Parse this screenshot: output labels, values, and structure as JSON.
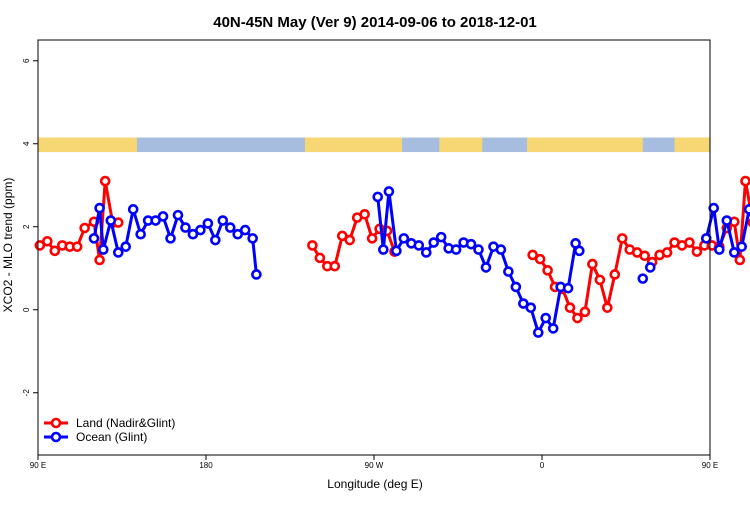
{
  "chart_data": {
    "type": "line",
    "title": "40N-45N May (Ver 9)   2014-09-06 to 2018-12-01",
    "xlabel": "Longitude (deg E)",
    "ylabel": "XCO2 - MLO trend (ppm)",
    "xlim": [
      90,
      450
    ],
    "ylim": [
      -3.5,
      6.5
    ],
    "x_ticks": [
      {
        "value": 90,
        "label": "90 E"
      },
      {
        "value": 180,
        "label": "180"
      },
      {
        "value": 270,
        "label": "90 W"
      },
      {
        "value": 360,
        "label": "0"
      },
      {
        "value": 450,
        "label": "90 E"
      },
      {
        "value": 540,
        "label": "180"
      }
    ],
    "y_ticks": [
      {
        "value": -2,
        "label": "-2"
      },
      {
        "value": 0,
        "label": "0"
      },
      {
        "value": 2,
        "label": "2"
      },
      {
        "value": 4,
        "label": "4"
      },
      {
        "value": 6,
        "label": "6"
      }
    ],
    "grid": false,
    "legend_position": "bottom-left",
    "land_mask": {
      "y_range": [
        3.8,
        4.15
      ],
      "land_color": "#f7d774",
      "ocean_color": "#a6bde0",
      "land_spans": [
        [
          90,
          143
        ],
        [
          233,
          285
        ],
        [
          305,
          328
        ],
        [
          352,
          414
        ],
        [
          431,
          476
        ],
        [
          523,
          540
        ]
      ]
    },
    "series": [
      {
        "name": "Land (Nadir&Glint)",
        "color": "#ff0000",
        "segments": [
          [
            [
              91,
              1.55
            ],
            [
              95,
              1.65
            ],
            [
              99,
              1.42
            ],
            [
              103,
              1.55
            ],
            [
              107,
              1.52
            ],
            [
              111,
              1.52
            ],
            [
              115,
              1.97
            ],
            [
              120,
              2.12
            ],
            [
              123,
              1.2
            ],
            [
              126,
              3.1
            ],
            [
              130,
              2.1
            ],
            [
              133,
              2.1
            ]
          ],
          [
            [
              237,
              1.55
            ],
            [
              241,
              1.25
            ],
            [
              245,
              1.05
            ],
            [
              249,
              1.05
            ],
            [
              253,
              1.78
            ],
            [
              257,
              1.68
            ],
            [
              261,
              2.22
            ],
            [
              265,
              2.3
            ],
            [
              269,
              1.72
            ],
            [
              273,
              1.95
            ],
            [
              277,
              1.9
            ],
            [
              281,
              1.4
            ]
          ],
          [
            [
              355,
              1.32
            ],
            [
              359,
              1.22
            ],
            [
              363,
              0.95
            ],
            [
              367,
              0.55
            ],
            [
              371,
              0.5
            ],
            [
              375,
              0.05
            ],
            [
              379,
              -0.2
            ],
            [
              383,
              -0.05
            ],
            [
              387,
              1.1
            ],
            [
              391,
              0.72
            ],
            [
              395,
              0.05
            ],
            [
              399,
              0.85
            ],
            [
              403,
              1.72
            ],
            [
              407,
              1.45
            ],
            [
              411,
              1.38
            ],
            [
              415,
              1.3
            ],
            [
              419,
              1.15
            ],
            [
              423,
              1.32
            ],
            [
              427,
              1.38
            ],
            [
              431,
              1.62
            ],
            [
              435,
              1.55
            ],
            [
              439,
              1.62
            ],
            [
              443,
              1.4
            ],
            [
              447,
              1.55
            ],
            [
              451,
              1.55
            ],
            [
              455,
              1.52
            ],
            [
              459,
              1.97
            ],
            [
              463,
              2.12
            ],
            [
              466,
              1.2
            ],
            [
              469,
              3.1
            ],
            [
              473,
              2.1
            ],
            [
              476,
              2.1
            ]
          ]
        ]
      },
      {
        "name": "Ocean (Glint)",
        "color": "#0000ff",
        "segments": [
          [
            [
              120,
              1.72
            ],
            [
              123,
              2.45
            ],
            [
              125,
              1.45
            ],
            [
              129,
              2.15
            ],
            [
              133,
              1.38
            ],
            [
              137,
              1.52
            ],
            [
              141,
              2.42
            ],
            [
              145,
              1.82
            ],
            [
              149,
              2.15
            ],
            [
              153,
              2.15
            ],
            [
              157,
              2.25
            ],
            [
              161,
              1.72
            ],
            [
              165,
              2.28
            ],
            [
              169,
              1.98
            ],
            [
              173,
              1.82
            ],
            [
              177,
              1.92
            ],
            [
              181,
              2.08
            ],
            [
              185,
              1.68
            ],
            [
              189,
              2.15
            ],
            [
              193,
              1.98
            ],
            [
              197,
              1.82
            ],
            [
              201,
              1.92
            ],
            [
              205,
              1.72
            ],
            [
              207,
              0.85
            ]
          ],
          [
            [
              272,
              2.72
            ],
            [
              275,
              1.45
            ],
            [
              278,
              2.85
            ],
            [
              282,
              1.42
            ],
            [
              286,
              1.72
            ],
            [
              290,
              1.6
            ],
            [
              294,
              1.55
            ],
            [
              298,
              1.38
            ],
            [
              302,
              1.62
            ],
            [
              306,
              1.75
            ],
            [
              310,
              1.48
            ],
            [
              314,
              1.45
            ],
            [
              318,
              1.62
            ],
            [
              322,
              1.58
            ],
            [
              326,
              1.45
            ],
            [
              330,
              1.02
            ],
            [
              334,
              1.52
            ],
            [
              338,
              1.45
            ],
            [
              342,
              0.92
            ],
            [
              346,
              0.55
            ],
            [
              350,
              0.15
            ],
            [
              354,
              0.05
            ],
            [
              358,
              -0.55
            ],
            [
              362,
              -0.2
            ],
            [
              366,
              -0.45
            ],
            [
              370,
              0.55
            ],
            [
              374,
              0.52
            ],
            [
              378,
              1.6
            ],
            [
              380,
              1.42
            ]
          ],
          [
            [
              448,
              1.72
            ],
            [
              452,
              2.45
            ],
            [
              455,
              1.45
            ],
            [
              459,
              2.15
            ],
            [
              463,
              1.38
            ],
            [
              467,
              1.52
            ],
            [
              471,
              2.42
            ],
            [
              475,
              1.82
            ],
            [
              479,
              2.15
            ],
            [
              483,
              2.15
            ],
            [
              487,
              2.25
            ],
            [
              491,
              1.72
            ]
          ]
        ],
        "points": [
          [
            414,
            0.75
          ],
          [
            418,
            1.02
          ]
        ]
      }
    ]
  }
}
